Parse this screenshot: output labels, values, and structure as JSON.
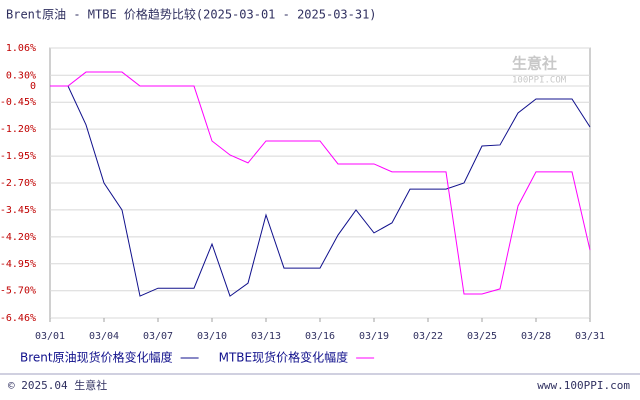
{
  "chart_data": {
    "type": "line",
    "title": "Brent原油 - MTBE 价格趋势比较(2025-03-01 - 2025-03-31)",
    "categories": [
      "03/01",
      null,
      null,
      "03/04",
      null,
      null,
      "03/07",
      null,
      null,
      "03/10",
      null,
      null,
      "03/13",
      null,
      null,
      "03/16",
      null,
      null,
      "03/19",
      null,
      null,
      "03/22",
      null,
      null,
      "03/25",
      null,
      null,
      "03/28",
      null,
      null,
      "03/31"
    ],
    "series": [
      {
        "name": "Brent原油现货价格变化幅度",
        "color": "#10108c",
        "values": [
          0,
          0,
          -1.08,
          -2.7,
          -3.45,
          -5.85,
          -5.63,
          -5.63,
          -5.63,
          -4.4,
          -5.85,
          -5.49,
          -3.59,
          -5.07,
          -5.07,
          -5.07,
          -4.15,
          -3.45,
          -4.09,
          -3.81,
          -2.87,
          -2.87,
          -2.87,
          -2.7,
          -1.67,
          -1.64,
          -0.75,
          -0.36,
          -0.36,
          -0.36,
          -1.14
        ]
      },
      {
        "name": "MTBE现货价格变化幅度",
        "color": "#ff00ff",
        "values": [
          0,
          0,
          0.39,
          0.39,
          0.39,
          0,
          0,
          0,
          0,
          -1.53,
          -1.92,
          -2.14,
          -1.53,
          -1.53,
          -1.53,
          -1.53,
          -2.17,
          -2.17,
          -2.17,
          -2.39,
          -2.39,
          -2.39,
          -2.39,
          -5.79,
          -5.79,
          -5.65,
          -3.34,
          -2.39,
          -2.39,
          -2.39,
          -4.57
        ]
      }
    ],
    "ylim": [
      -6.46,
      1.06
    ],
    "yticks": [
      {
        "value": 1.06,
        "label": "1.06%"
      },
      {
        "value": 0.3,
        "label": "0.30%"
      },
      0,
      {
        "value": -0.45,
        "label": "-0.45%"
      },
      {
        "value": -1.2,
        "label": "-1.20%"
      },
      {
        "value": -1.95,
        "label": "-1.95%"
      },
      {
        "value": -2.7,
        "label": "-2.70%"
      },
      {
        "value": -3.45,
        "label": "-3.45%"
      },
      {
        "value": -4.2,
        "label": "-4.20%"
      },
      {
        "value": -4.95,
        "label": "-4.95%"
      },
      {
        "value": -5.7,
        "label": "-5.70%"
      },
      {
        "value": -6.46,
        "label": "-6.46%"
      }
    ],
    "grid": true,
    "watermark": [
      "生意社",
      "100PPI.COM"
    ],
    "footer": [
      "© 2025.04 生意社",
      "www.100PPI.com"
    ]
  }
}
